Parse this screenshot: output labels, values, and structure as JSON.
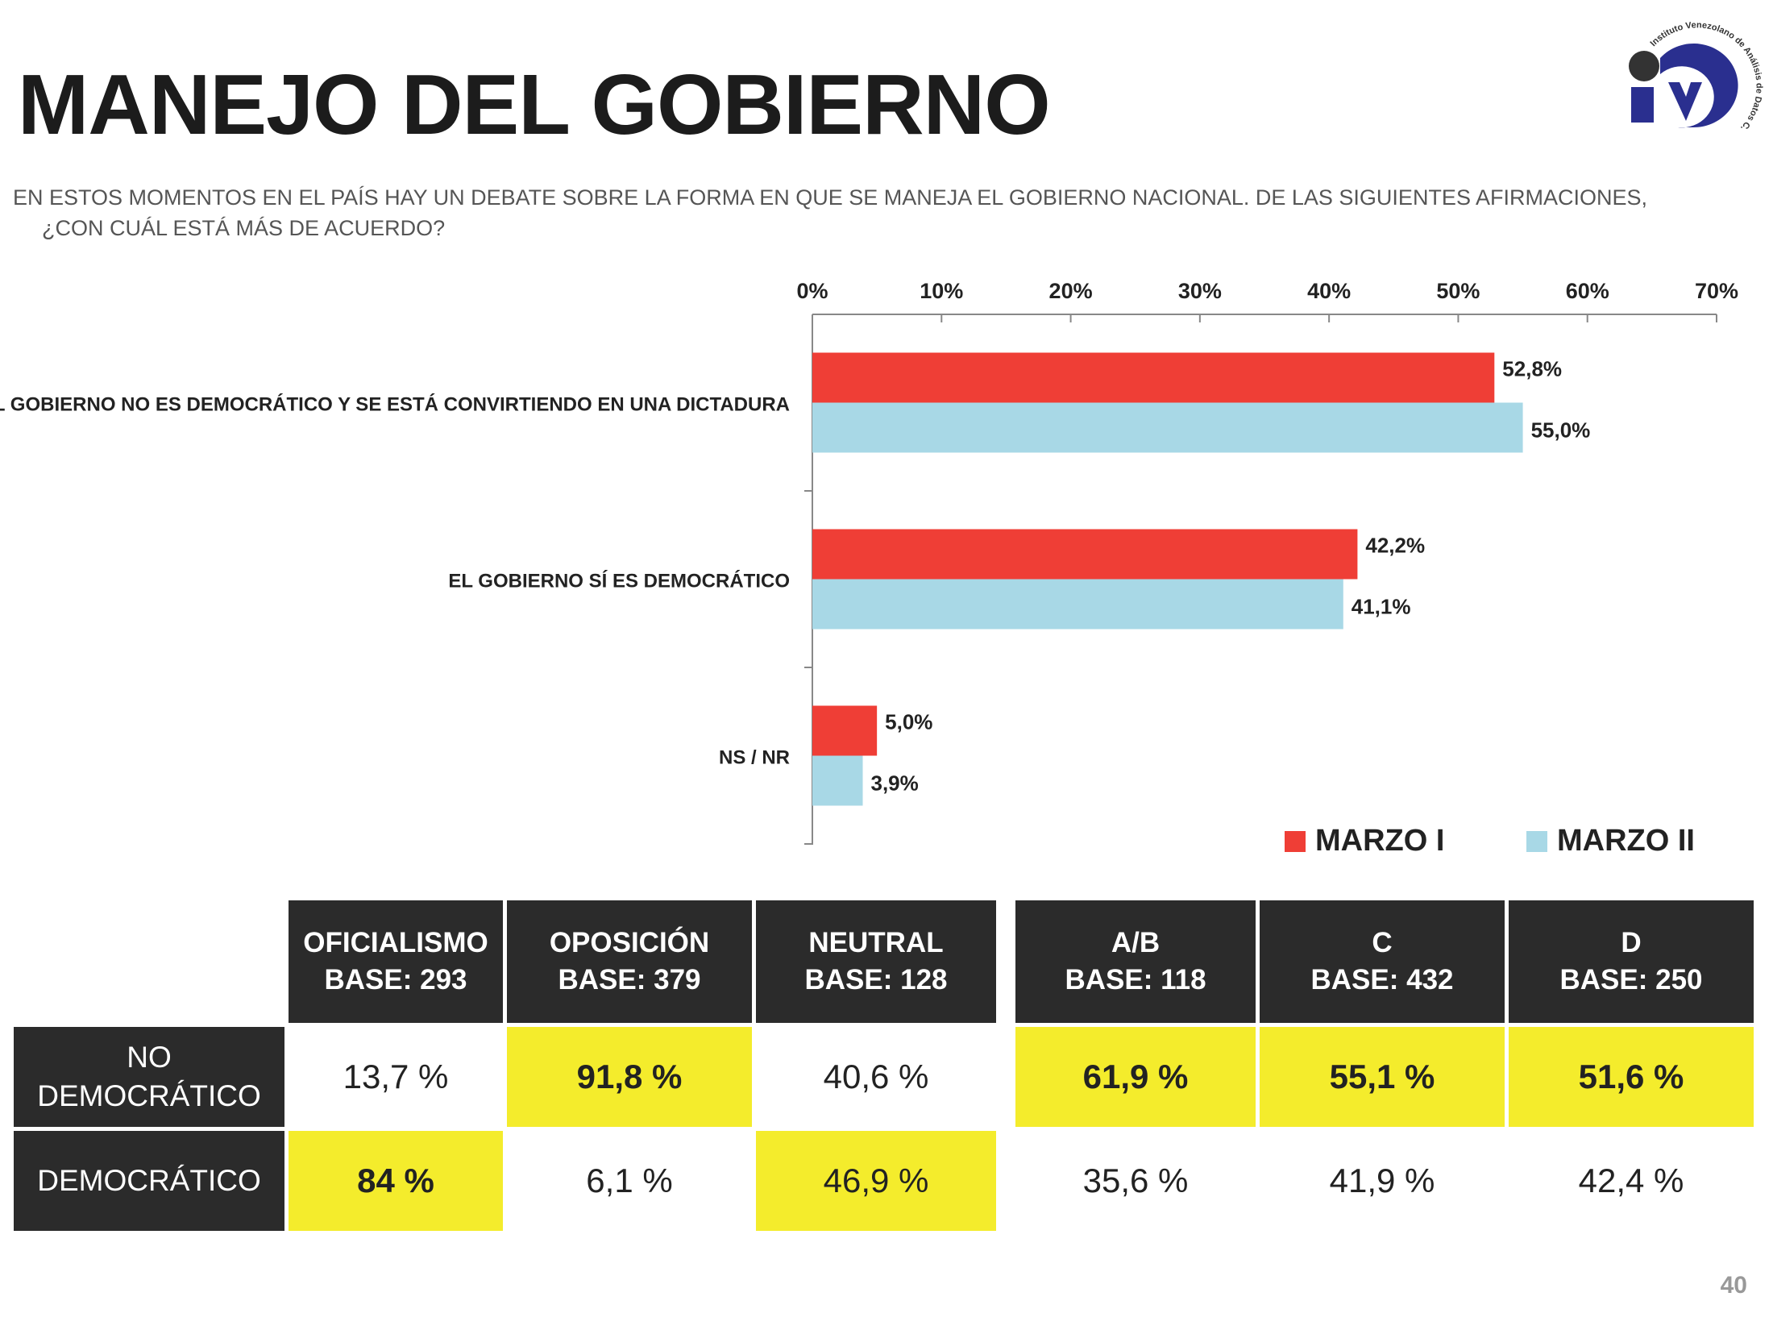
{
  "title": "MANEJO DEL GOBIERNO",
  "question": "EN ESTOS MOMENTOS EN EL PAÍS HAY UN DEBATE SOBRE LA FORMA EN QUE SE MANEJA EL GOBIERNO NACIONAL. DE LAS SIGUIENTES AFIRMACIONES, ¿CON CUÁL ESTÁ MÁS DE ACUERDO?",
  "logo": {
    "ring_text": "Instituto Venezolano de Análisis de Datos C.A",
    "primary": "#2a2f8f",
    "dark": "#333333"
  },
  "colors": {
    "series1": "#ef3e36",
    "series2": "#a8d8e6",
    "header_bg": "#2b2b2b",
    "highlight": "#f4ec2c"
  },
  "chart_data": {
    "type": "bar",
    "orientation": "horizontal",
    "categories": [
      "EL GOBIERNO NO ES DEMOCRÁTICO Y SE ESTÁ CONVIRTIENDO EN UNA DICTADURA",
      "EL GOBIERNO SÍ ES DEMOCRÁTICO",
      "NS / NR"
    ],
    "series": [
      {
        "name": "MARZO I",
        "values": [
          52.8,
          42.2,
          5.0
        ],
        "labels": [
          "52,8%",
          "42,2%",
          "5,0%"
        ]
      },
      {
        "name": "MARZO II",
        "values": [
          55.0,
          41.1,
          3.9
        ],
        "labels": [
          "55,0%",
          "41,1%",
          "3,9%"
        ]
      }
    ],
    "xlim": [
      0,
      70
    ],
    "xticks": [
      "0%",
      "10%",
      "20%",
      "30%",
      "40%",
      "50%",
      "60%",
      "70%"
    ],
    "axis_position": "top",
    "legend_position": "bottom-right"
  },
  "table": {
    "groups": [
      [
        {
          "name": "OFICIALISMO",
          "base": "BASE: 293"
        },
        {
          "name": "OPOSICIÓN",
          "base": "BASE: 379"
        },
        {
          "name": "NEUTRAL",
          "base": "BASE: 128"
        }
      ],
      [
        {
          "name": "A/B",
          "base": "BASE:  118"
        },
        {
          "name": "C",
          "base": "BASE: 432"
        },
        {
          "name": "D",
          "base": "BASE: 250"
        }
      ]
    ],
    "rows": [
      {
        "line1": "NO",
        "line2": "DEMOCRÁTICO",
        "values": [
          "13,7 %",
          "91,8 %",
          "40,6 %",
          "61,9 %",
          "55,1 %",
          "51,6 %"
        ],
        "highlight": [
          false,
          true,
          false,
          true,
          true,
          true
        ]
      },
      {
        "line1": "",
        "line2": "DEMOCRÁTICO",
        "values": [
          "84 %",
          "6,1 %",
          "46,9 %",
          "35,6 %",
          "41,9 %",
          "42,4 %"
        ],
        "highlight": [
          true,
          false,
          true,
          false,
          false,
          false
        ]
      }
    ]
  },
  "page_number": "40"
}
